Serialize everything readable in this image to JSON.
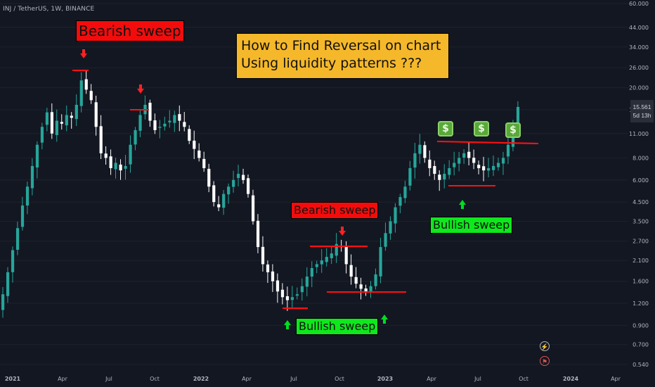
{
  "symbol": "INJ / TetherUS, 1W, BINANCE",
  "title_lines": [
    "How to Find Reversal on chart",
    "Using liquidity patterns ???"
  ],
  "annotations": {
    "bearish_1": "Bearish sweep",
    "bearish_2": "Bearish sweep",
    "bullish_1": "Bullish sweep",
    "bullish_2": "Bullish sweep"
  },
  "money_icon": "$",
  "current_price": {
    "value": "15.561",
    "countdown": "5d 13h"
  },
  "icons": [
    "lightning-icon",
    "flag-icon"
  ],
  "colors": {
    "up": "#26a69a",
    "down": "#ffffff",
    "bg": "#131722",
    "level_line": "#ff1111",
    "arrow_red": "#ff2222",
    "arrow_green": "#00dd22",
    "label_red": "#f40c0c",
    "label_green": "#0ee81c",
    "title_bg": "#f5b82a"
  },
  "chart_data": {
    "type": "candlestick",
    "scale": "log",
    "ylim": [
      0.5,
      62
    ],
    "y_ticks": [
      60.0,
      44.0,
      34.0,
      26.0,
      20.0,
      15.0,
      11.0,
      8.0,
      6.0,
      4.5,
      3.5,
      2.7,
      2.1,
      1.6,
      1.2,
      0.9,
      0.7,
      0.54
    ],
    "y_tick_labels": [
      "60.000",
      "44.000",
      "34.000",
      "26.000",
      "20.000",
      "15.000",
      "11.000",
      "8.000",
      "6.000",
      "4.500",
      "3.500",
      "2.700",
      "2.100",
      "1.600",
      "1.200",
      "0.900",
      "0.700",
      "0.540"
    ],
    "x_ticks": [
      "2021",
      "Apr",
      "Jul",
      "Oct",
      "2022",
      "Apr",
      "Jul",
      "Oct",
      "2023",
      "Apr",
      "Jul",
      "Oct",
      "2024",
      "Apr"
    ],
    "timeframe": "1W",
    "approx_closes": [
      1.35,
      1.8,
      2.4,
      3.2,
      4.3,
      5.5,
      7.2,
      9.5,
      12.0,
      14.5,
      11.0,
      13.0,
      12.5,
      14.0,
      13.5,
      16.0,
      22.0,
      19.5,
      17.0,
      12.0,
      8.5,
      8.0,
      7.0,
      7.5,
      6.8,
      7.2,
      9.5,
      11.5,
      14.0,
      16.0,
      13.0,
      11.5,
      12.0,
      12.5,
      13.0,
      14.0,
      13.0,
      12.0,
      10.0,
      9.0,
      8.0,
      7.0,
      5.5,
      4.5,
      4.2,
      5.0,
      5.5,
      6.0,
      6.5,
      6.0,
      5.0,
      3.5,
      2.5,
      2.0,
      1.8,
      1.6,
      1.4,
      1.3,
      1.25,
      1.3,
      1.35,
      1.5,
      1.7,
      1.9,
      2.0,
      2.1,
      2.2,
      2.3,
      2.6,
      2.5,
      2.0,
      1.7,
      1.55,
      1.45,
      1.4,
      1.5,
      1.75,
      2.5,
      3.0,
      3.5,
      4.2,
      4.8,
      5.5,
      7.0,
      8.5,
      9.5,
      8.0,
      7.0,
      6.5,
      6.0,
      6.5,
      7.0,
      7.5,
      8.0,
      8.5,
      8.0,
      7.5,
      7.0,
      6.8,
      7.0,
      7.2,
      7.5,
      8.0,
      9.5,
      12.0,
      15.561
    ]
  }
}
